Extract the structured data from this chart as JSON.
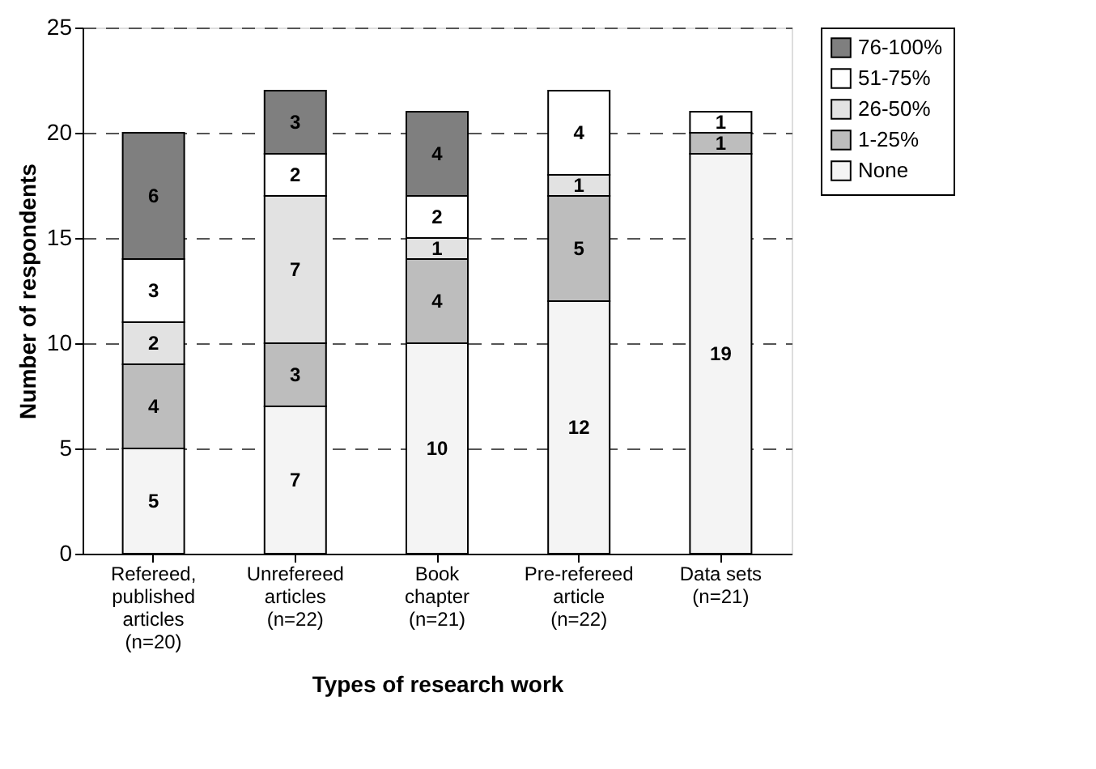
{
  "chart_data": {
    "type": "bar",
    "stacked": true,
    "xlabel": "Types of research work",
    "ylabel": "Number of respondents",
    "categories": [
      "Refereed,\npublished\narticles\n(n=20)",
      "Unrefereed\narticles\n(n=22)",
      "Book\nchapter\n(n=21)",
      "Pre-refereed\narticle\n(n=22)",
      "Data sets\n(n=21)"
    ],
    "series": [
      {
        "name": "None",
        "color": "#f4f4f4",
        "values": [
          5,
          7,
          10,
          12,
          19
        ],
        "value_labels": [
          "5",
          "7",
          "10",
          "12",
          "19"
        ]
      },
      {
        "name": "1-25%",
        "color": "#bdbdbd",
        "values": [
          4,
          3,
          4,
          5,
          1
        ],
        "value_labels": [
          "4",
          "3",
          "4",
          "5",
          "1"
        ]
      },
      {
        "name": "26-50%",
        "color": "#e2e2e2",
        "values": [
          2,
          7,
          1,
          1,
          0
        ],
        "value_labels": [
          "2",
          "7",
          "1",
          "1",
          null
        ]
      },
      {
        "name": "51-75%",
        "color": "#ffffff",
        "values": [
          3,
          2,
          2,
          4,
          1
        ],
        "value_labels": [
          "3",
          "2",
          "2",
          "4",
          "1"
        ]
      },
      {
        "name": "76-100%",
        "color": "#7f7f7f",
        "values": [
          6,
          3,
          4,
          0,
          0
        ],
        "value_labels": [
          "6",
          "3",
          "4",
          null,
          null
        ]
      }
    ],
    "ylim": [
      0,
      25
    ],
    "yticks": [
      0,
      5,
      10,
      15,
      20,
      25
    ],
    "grid": "y",
    "legend": "right"
  }
}
